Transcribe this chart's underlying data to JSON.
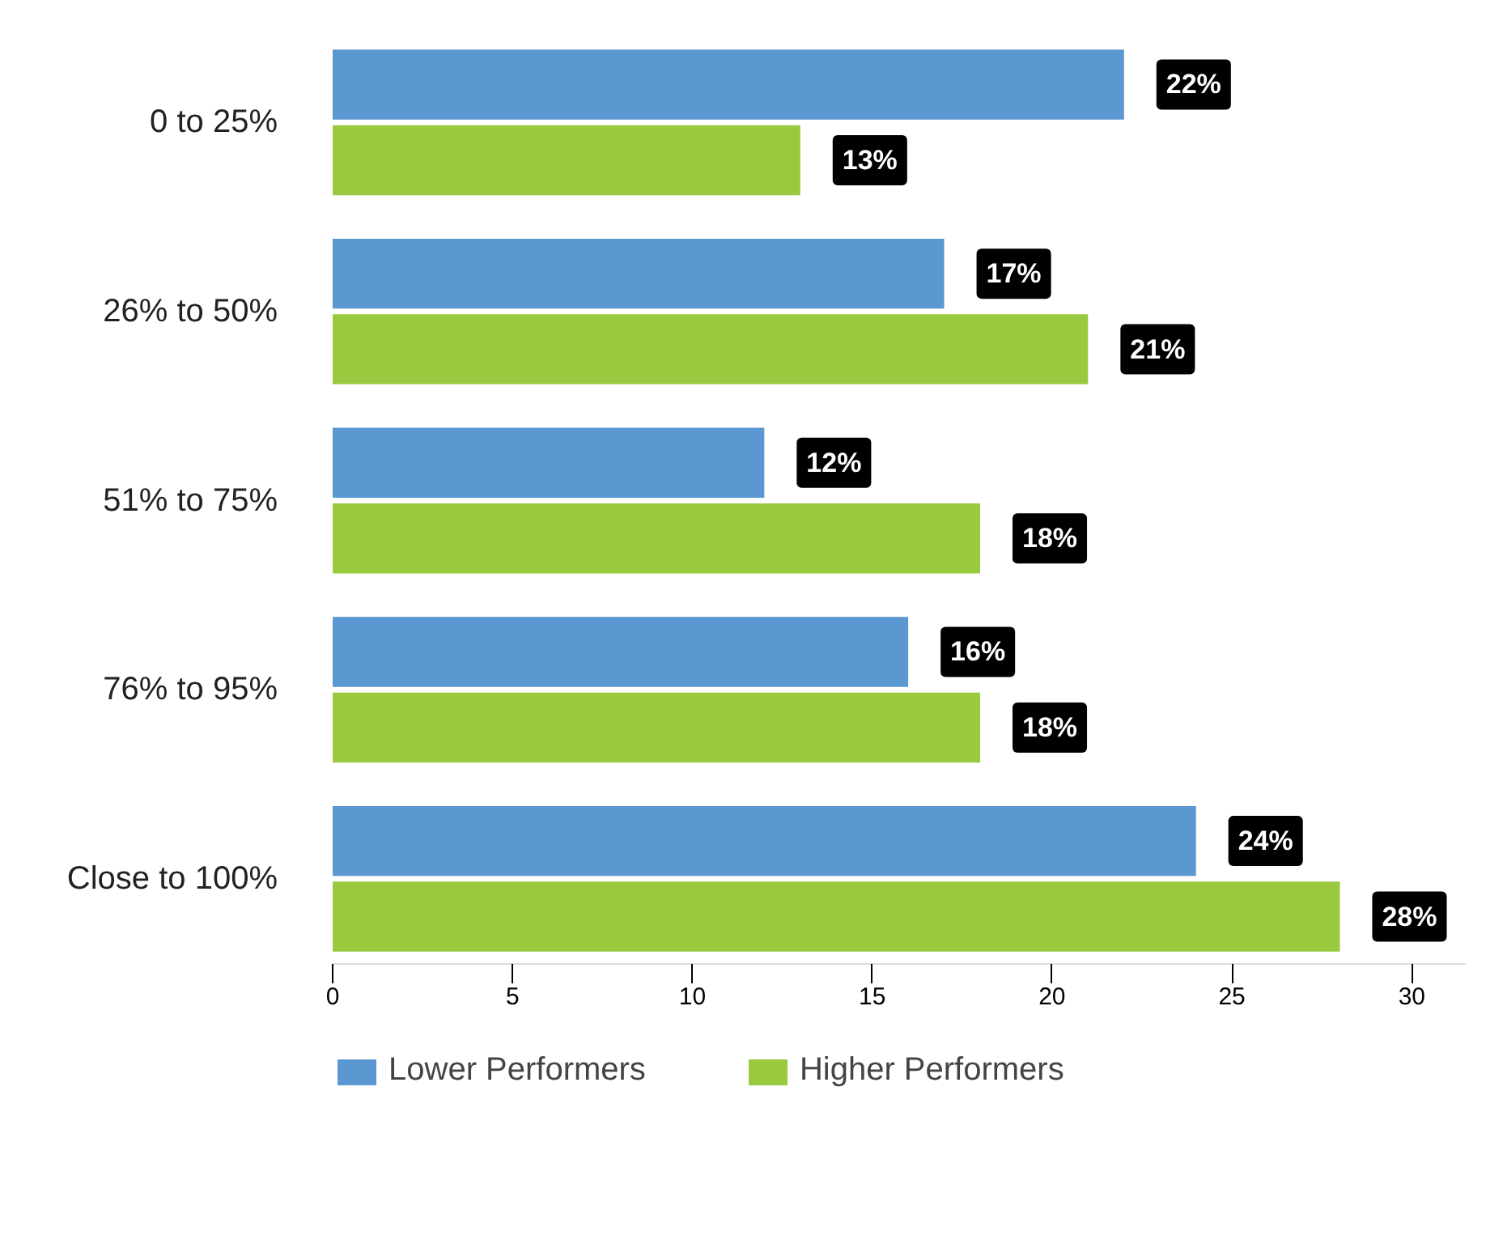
{
  "chart_data": {
    "type": "bar",
    "orientation": "horizontal",
    "categories": [
      "0 to 25%",
      "26% to 50%",
      "51% to 75%",
      "76% to 95%",
      "Close to 100%"
    ],
    "series": [
      {
        "name": "Lower Performers",
        "color": "#5b97d1",
        "values": [
          22,
          17,
          12,
          16,
          24
        ],
        "value_labels": [
          "22%",
          "17%",
          "12%",
          "16%",
          "24%"
        ]
      },
      {
        "name": "Higher Performers",
        "color": "#99c93f",
        "values": [
          13,
          21,
          18,
          18,
          28
        ],
        "value_labels": [
          "13%",
          "21%",
          "18%",
          "18%",
          "28%"
        ]
      }
    ],
    "xlim": [
      0,
      31.5
    ],
    "xticks": [
      0,
      5,
      10,
      15,
      20,
      25,
      30
    ],
    "grid": false,
    "legend": "bottom"
  }
}
